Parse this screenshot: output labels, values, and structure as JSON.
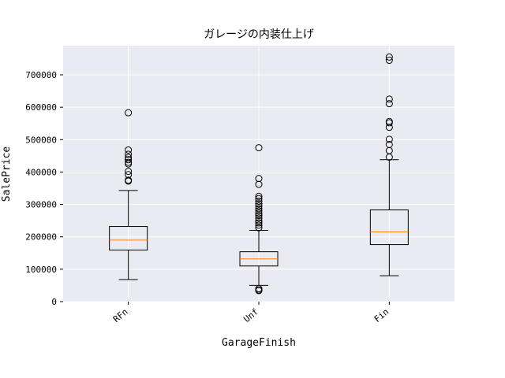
{
  "chart_data": {
    "type": "box",
    "title": "ガレージの内装仕上げ",
    "xlabel": "GarageFinish",
    "ylabel": "SalePrice",
    "ylim": [
      0,
      790000
    ],
    "yticks": [
      0,
      100000,
      200000,
      300000,
      400000,
      500000,
      600000,
      700000
    ],
    "ytick_labels": [
      "0",
      "100000",
      "200000",
      "300000",
      "400000",
      "500000",
      "600000",
      "700000"
    ],
    "grid": true,
    "categories": [
      "RFn",
      "Unf",
      "Fin"
    ],
    "boxes": [
      {
        "name": "RFn",
        "whisker_low": 68000,
        "q1": 159000,
        "median": 190000,
        "q3": 232000,
        "whisker_high": 343000,
        "fliers": [
          583000,
          468000,
          455000,
          445000,
          438000,
          430000,
          425000,
          402000,
          392000,
          375000,
          372000
        ]
      },
      {
        "name": "Unf",
        "whisker_low": 50000,
        "q1": 110000,
        "median": 132000,
        "q3": 154000,
        "whisker_high": 220000,
        "fliers": [
          475000,
          380000,
          362000,
          325000,
          318000,
          310000,
          302000,
          295000,
          287000,
          280000,
          273000,
          266000,
          258000,
          250000,
          243000,
          236000,
          228000,
          40000,
          36000,
          34000
        ]
      },
      {
        "name": "Fin",
        "whisker_low": 80000,
        "q1": 176000,
        "median": 215000,
        "q3": 283000,
        "whisker_high": 438000,
        "fliers": [
          755000,
          745000,
          625000,
          611000,
          556000,
          552000,
          538000,
          501000,
          485000,
          466000,
          446000
        ]
      }
    ]
  }
}
